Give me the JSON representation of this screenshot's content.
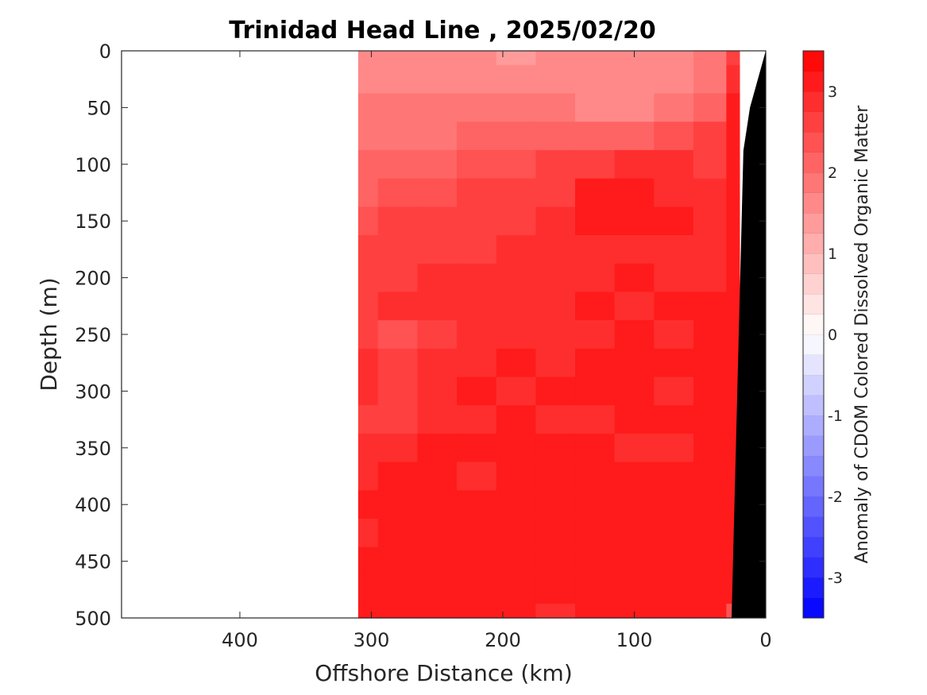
{
  "chart_data": {
    "type": "heatmap",
    "title": "Trinidad Head Line , 2025/02/20",
    "xlabel": "Offshore Distance (km)",
    "ylabel": "Depth (m)",
    "xlim": [
      490,
      0
    ],
    "ylim": [
      0,
      500
    ],
    "x_reversed": true,
    "y_reversed": true,
    "x_ticks": [
      400,
      300,
      200,
      100,
      0
    ],
    "y_ticks": [
      0,
      50,
      100,
      150,
      200,
      250,
      300,
      350,
      400,
      450,
      500
    ],
    "data_extent_x": [
      310,
      20
    ],
    "colorbar": {
      "label": "Anomaly of CDOM Colored Dissolved Organic Matter",
      "range": [
        -3.5,
        3.5
      ],
      "ticks": [
        3,
        2,
        1,
        0,
        -1,
        -2,
        -3
      ],
      "levels": 28,
      "colormap": "blue-white-red diverging",
      "min_color": "#0000ff",
      "mid_color": "#ffffff",
      "max_color": "#ff0000"
    },
    "grid": false,
    "depth_levels": [
      0,
      25,
      50,
      75,
      100,
      125,
      150,
      175,
      200,
      225,
      250,
      275,
      300,
      325,
      350,
      375,
      400,
      425,
      450,
      475,
      500
    ],
    "distance_stations": [
      310,
      280,
      250,
      220,
      190,
      160,
      130,
      100,
      70,
      40,
      20
    ],
    "anomaly_grid": [
      [
        1.6,
        1.6,
        1.5,
        1.5,
        1.4,
        1.6,
        1.5,
        1.5,
        1.6,
        1.8,
        2.7
      ],
      [
        1.6,
        1.7,
        1.6,
        1.6,
        1.6,
        1.7,
        1.6,
        1.6,
        1.7,
        1.9,
        2.9
      ],
      [
        1.8,
        1.8,
        1.8,
        1.8,
        1.8,
        1.8,
        1.7,
        1.7,
        1.8,
        2.2,
        3.0
      ],
      [
        1.9,
        1.9,
        1.9,
        2.0,
        2.0,
        2.0,
        2.1,
        2.2,
        2.3,
        2.5,
        3.1
      ],
      [
        2.0,
        2.1,
        2.2,
        2.3,
        2.4,
        2.5,
        2.7,
        2.8,
        2.8,
        2.7,
        3.2
      ],
      [
        2.2,
        2.3,
        2.4,
        2.5,
        2.6,
        2.7,
        3.0,
        3.0,
        2.9,
        2.8,
        3.1
      ],
      [
        2.4,
        2.5,
        2.5,
        2.6,
        2.7,
        2.8,
        3.1,
        3.1,
        3.0,
        2.9,
        3.1
      ],
      [
        2.5,
        2.6,
        2.7,
        2.7,
        2.8,
        2.9,
        2.9,
        2.9,
        2.9,
        2.9,
        3.1
      ],
      [
        2.6,
        2.7,
        2.8,
        2.8,
        2.9,
        2.8,
        2.9,
        3.0,
        2.9,
        2.9,
        3.1
      ],
      [
        2.7,
        2.8,
        2.9,
        2.8,
        2.9,
        2.9,
        3.0,
        2.9,
        3.0,
        3.0,
        3.1
      ],
      [
        2.5,
        2.4,
        2.7,
        2.9,
        2.9,
        2.8,
        2.9,
        3.0,
        2.9,
        3.0,
        3.1
      ],
      [
        2.8,
        2.7,
        2.9,
        2.9,
        3.0,
        2.8,
        3.0,
        3.0,
        3.0,
        3.0,
        3.1
      ],
      [
        2.8,
        2.5,
        2.9,
        3.0,
        2.9,
        3.0,
        3.0,
        3.0,
        2.9,
        3.0,
        3.2
      ],
      [
        2.7,
        2.5,
        2.8,
        2.9,
        3.0,
        2.8,
        2.9,
        3.1,
        3.0,
        3.0,
        3.1
      ],
      [
        2.9,
        2.9,
        3.0,
        3.0,
        3.1,
        3.0,
        3.0,
        2.9,
        2.8,
        3.1,
        3.2
      ],
      [
        2.9,
        3.0,
        3.0,
        2.9,
        3.0,
        3.1,
        3.0,
        3.0,
        3.0,
        3.0,
        3.2
      ],
      [
        3.0,
        3.0,
        3.1,
        3.0,
        3.0,
        3.0,
        3.1,
        3.0,
        3.1,
        3.1,
        3.2
      ],
      [
        2.9,
        3.0,
        3.0,
        3.1,
        3.0,
        3.1,
        3.0,
        3.0,
        3.0,
        3.1,
        3.2
      ],
      [
        3.0,
        3.0,
        3.1,
        3.0,
        3.2,
        3.1,
        3.0,
        3.1,
        3.0,
        3.1,
        3.2
      ],
      [
        3.0,
        3.0,
        3.0,
        3.1,
        3.1,
        3.0,
        3.1,
        3.1,
        3.1,
        3.2,
        3.2
      ],
      [
        3.1,
        3.0,
        3.1,
        3.2,
        3.0,
        2.9,
        3.1,
        3.2,
        3.1,
        3.2,
        2.4
      ]
    ],
    "bathymetry": {
      "fill_color": "#000000",
      "seafloor": [
        {
          "x": 26,
          "y": 500
        },
        {
          "x": 17,
          "y": 88
        },
        {
          "x": 12,
          "y": 50
        },
        {
          "x": 0,
          "y": 0
        }
      ]
    }
  }
}
